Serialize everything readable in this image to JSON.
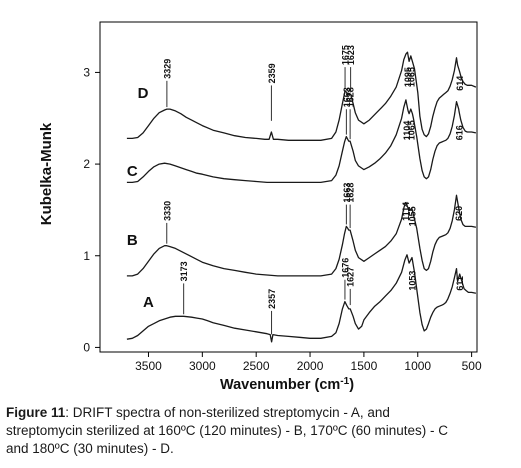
{
  "chart_data": {
    "type": "line",
    "xlabel": "Wavenumber (cm-1)",
    "xlabel_parts": {
      "main": "Wavenumber (cm",
      "superscript": "-1",
      "close": ")"
    },
    "ylabel": "Kubelka-Munk",
    "xlim": [
      3950,
      450
    ],
    "x_reversed": true,
    "ylim": [
      -0.05,
      3.55
    ],
    "x_ticks": [
      3500,
      3000,
      2500,
      2000,
      1500,
      1000,
      500
    ],
    "x_tick_labels": [
      "3500",
      "3000",
      "2500",
      "2000",
      "1500",
      "1000",
      "500"
    ],
    "y_ticks": [
      0,
      1,
      2,
      3
    ],
    "y_tick_labels": [
      "0",
      "1",
      "2",
      "3"
    ],
    "grid": false,
    "legend": "none",
    "series": [
      {
        "name": "A",
        "label_at": [
          3500,
          0.44
        ],
        "x": [
          3700,
          3650,
          3600,
          3550,
          3500,
          3450,
          3400,
          3350,
          3300,
          3250,
          3200,
          3173,
          3100,
          3050,
          3000,
          2950,
          2900,
          2800,
          2700,
          2600,
          2500,
          2400,
          2370,
          2357,
          2345,
          2300,
          2200,
          2100,
          2000,
          1900,
          1800,
          1760,
          1730,
          1700,
          1676,
          1660,
          1640,
          1627,
          1600,
          1580,
          1550,
          1520,
          1500,
          1450,
          1400,
          1350,
          1300,
          1250,
          1200,
          1150,
          1120,
          1100,
          1080,
          1053,
          1030,
          1000,
          980,
          960,
          940,
          920,
          900,
          880,
          860,
          840,
          820,
          800,
          780,
          760,
          740,
          720,
          700,
          680,
          660,
          640,
          630,
          611,
          590,
          570,
          550,
          530,
          500,
          460
        ],
        "y": [
          0.09,
          0.1,
          0.13,
          0.18,
          0.23,
          0.26,
          0.29,
          0.31,
          0.33,
          0.34,
          0.34,
          0.34,
          0.33,
          0.32,
          0.31,
          0.29,
          0.27,
          0.24,
          0.21,
          0.19,
          0.17,
          0.15,
          0.14,
          0.06,
          0.14,
          0.13,
          0.12,
          0.11,
          0.1,
          0.1,
          0.12,
          0.16,
          0.26,
          0.42,
          0.5,
          0.46,
          0.42,
          0.42,
          0.34,
          0.26,
          0.2,
          0.23,
          0.3,
          0.38,
          0.45,
          0.5,
          0.56,
          0.62,
          0.7,
          0.82,
          0.95,
          1.01,
          0.92,
          0.98,
          0.82,
          0.55,
          0.38,
          0.25,
          0.18,
          0.2,
          0.26,
          0.33,
          0.38,
          0.42,
          0.44,
          0.45,
          0.46,
          0.47,
          0.49,
          0.53,
          0.59,
          0.66,
          0.76,
          0.86,
          0.72,
          0.8,
          0.72,
          0.64,
          0.62,
          0.6,
          0.6,
          0.59
        ]
      },
      {
        "name": "B",
        "label_at": [
          3650,
          1.12
        ],
        "x": [
          3700,
          3650,
          3600,
          3550,
          3500,
          3450,
          3400,
          3350,
          3330,
          3300,
          3250,
          3200,
          3150,
          3100,
          3050,
          3000,
          2900,
          2800,
          2700,
          2600,
          2500,
          2400,
          2300,
          2200,
          2100,
          2000,
          1900,
          1800,
          1760,
          1730,
          1700,
          1680,
          1663,
          1650,
          1640,
          1628,
          1600,
          1580,
          1550,
          1500,
          1450,
          1400,
          1350,
          1300,
          1250,
          1200,
          1150,
          1130,
          1114,
          1100,
          1080,
          1055,
          1040,
          1010,
          980,
          960,
          940,
          920,
          900,
          880,
          860,
          840,
          820,
          800,
          780,
          760,
          740,
          720,
          700,
          680,
          660,
          640,
          620,
          600,
          580,
          560,
          540,
          520,
          500,
          460
        ],
        "y": [
          0.78,
          0.78,
          0.8,
          0.86,
          0.94,
          1.02,
          1.08,
          1.11,
          1.11,
          1.1,
          1.08,
          1.05,
          1.02,
          0.99,
          0.96,
          0.93,
          0.89,
          0.86,
          0.84,
          0.82,
          0.8,
          0.79,
          0.78,
          0.78,
          0.78,
          0.78,
          0.78,
          0.8,
          0.86,
          0.96,
          1.12,
          1.24,
          1.32,
          1.3,
          1.28,
          1.28,
          1.16,
          1.06,
          0.98,
          0.94,
          0.98,
          1.02,
          1.06,
          1.1,
          1.16,
          1.24,
          1.4,
          1.52,
          1.58,
          1.55,
          1.49,
          1.52,
          1.45,
          1.3,
          1.08,
          0.95,
          0.86,
          0.84,
          0.86,
          0.94,
          1.04,
          1.12,
          1.17,
          1.2,
          1.21,
          1.22,
          1.23,
          1.25,
          1.3,
          1.38,
          1.5,
          1.66,
          1.52,
          1.4,
          1.34,
          1.32,
          1.32,
          1.32,
          1.32,
          1.31
        ]
      },
      {
        "name": "C",
        "label_at": [
          3650,
          1.87
        ],
        "x": [
          3700,
          3650,
          3600,
          3550,
          3500,
          3450,
          3400,
          3350,
          3300,
          3250,
          3200,
          3150,
          3100,
          3050,
          3000,
          2900,
          2800,
          2700,
          2600,
          2500,
          2400,
          2300,
          2200,
          2100,
          2000,
          1900,
          1800,
          1760,
          1730,
          1700,
          1680,
          1663,
          1650,
          1640,
          1628,
          1600,
          1580,
          1550,
          1500,
          1450,
          1400,
          1350,
          1300,
          1250,
          1200,
          1150,
          1130,
          1110,
          1104,
          1090,
          1080,
          1065,
          1050,
          1040,
          1010,
          980,
          960,
          940,
          920,
          900,
          880,
          860,
          840,
          820,
          800,
          780,
          760,
          740,
          720,
          700,
          680,
          660,
          640,
          620,
          616,
          600,
          580,
          560,
          540,
          520,
          500,
          460
        ],
        "y": [
          1.8,
          1.8,
          1.81,
          1.86,
          1.92,
          1.97,
          2.0,
          2.01,
          2.0,
          1.98,
          1.96,
          1.94,
          1.92,
          1.9,
          1.89,
          1.86,
          1.84,
          1.83,
          1.82,
          1.81,
          1.8,
          1.8,
          1.8,
          1.8,
          1.8,
          1.8,
          1.82,
          1.88,
          1.98,
          2.14,
          2.24,
          2.3,
          2.27,
          2.25,
          2.25,
          2.14,
          2.04,
          1.98,
          1.94,
          1.97,
          2.01,
          2.06,
          2.12,
          2.2,
          2.32,
          2.5,
          2.62,
          2.7,
          2.66,
          2.58,
          2.55,
          2.6,
          2.55,
          2.5,
          2.3,
          2.06,
          1.93,
          1.86,
          1.84,
          1.86,
          1.94,
          2.05,
          2.14,
          2.2,
          2.23,
          2.24,
          2.25,
          2.26,
          2.28,
          2.33,
          2.41,
          2.53,
          2.68,
          2.6,
          2.57,
          2.48,
          2.4,
          2.36,
          2.35,
          2.35,
          2.35,
          2.34
        ]
      },
      {
        "name": "D",
        "label_at": [
          3550,
          2.72
        ],
        "x": [
          3700,
          3650,
          3600,
          3550,
          3500,
          3450,
          3400,
          3350,
          3329,
          3300,
          3250,
          3200,
          3150,
          3100,
          3050,
          3000,
          2900,
          2800,
          2700,
          2600,
          2500,
          2420,
          2380,
          2359,
          2340,
          2300,
          2200,
          2100,
          2000,
          1900,
          1800,
          1760,
          1730,
          1700,
          1675,
          1660,
          1650,
          1623,
          1600,
          1580,
          1550,
          1500,
          1450,
          1400,
          1350,
          1300,
          1250,
          1200,
          1150,
          1130,
          1110,
          1095,
          1080,
          1065,
          1050,
          1030,
          1000,
          980,
          960,
          940,
          920,
          900,
          880,
          860,
          840,
          820,
          800,
          780,
          760,
          740,
          720,
          700,
          680,
          660,
          640,
          630,
          614,
          600,
          580,
          560,
          540,
          520,
          500,
          460
        ],
        "y": [
          2.28,
          2.28,
          2.29,
          2.34,
          2.42,
          2.5,
          2.56,
          2.59,
          2.6,
          2.6,
          2.58,
          2.55,
          2.51,
          2.48,
          2.45,
          2.42,
          2.37,
          2.34,
          2.31,
          2.29,
          2.28,
          2.27,
          2.27,
          2.35,
          2.27,
          2.27,
          2.26,
          2.26,
          2.26,
          2.26,
          2.28,
          2.35,
          2.48,
          2.66,
          2.8,
          2.78,
          2.76,
          2.76,
          2.66,
          2.56,
          2.48,
          2.44,
          2.48,
          2.54,
          2.6,
          2.66,
          2.74,
          2.84,
          3.02,
          3.14,
          3.2,
          3.22,
          3.12,
          3.18,
          3.12,
          3.04,
          2.78,
          2.52,
          2.38,
          2.32,
          2.3,
          2.33,
          2.41,
          2.52,
          2.61,
          2.68,
          2.72,
          2.74,
          2.76,
          2.78,
          2.8,
          2.85,
          2.92,
          3.02,
          3.16,
          3.08,
          3.02,
          2.96,
          2.9,
          2.87,
          2.86,
          2.86,
          2.86,
          2.84
        ]
      }
    ],
    "annotations": [
      {
        "text": "3173",
        "x": 3173,
        "y": 0.34,
        "top": 0.72,
        "rotate": true
      },
      {
        "text": "2357",
        "x": 2357,
        "y": 0.12,
        "top": 0.42,
        "rotate": true
      },
      {
        "text": "1676",
        "x": 1676,
        "y": 0.5,
        "top": 0.76,
        "rotate": true
      },
      {
        "text": "1627",
        "x": 1627,
        "y": 0.44,
        "top": 0.66,
        "rotate": true
      },
      {
        "text": "1053",
        "x": 1053,
        "y": 1.0,
        "top": 0.62,
        "rotate": true,
        "inside": true
      },
      {
        "text": "611",
        "x": 611,
        "y": 0.82,
        "top": 0.62,
        "rotate": true,
        "inside": true
      },
      {
        "text": "3330",
        "x": 3330,
        "y": 1.11,
        "top": 1.38,
        "rotate": true
      },
      {
        "text": "1663",
        "x": 1663,
        "y": 1.32,
        "top": 1.58,
        "rotate": true
      },
      {
        "text": "1628",
        "x": 1628,
        "y": 1.28,
        "top": 1.58,
        "rotate": true
      },
      {
        "text": "1114",
        "x": 1114,
        "y": 1.58,
        "top": 1.38,
        "rotate": true,
        "inside": true
      },
      {
        "text": "1055",
        "x": 1055,
        "y": 1.52,
        "top": 1.32,
        "rotate": true,
        "inside": true
      },
      {
        "text": "620",
        "x": 620,
        "y": 1.66,
        "top": 1.38,
        "rotate": true,
        "inside": true
      },
      {
        "text": "1663",
        "x": 1663,
        "y": 2.3,
        "top": 2.62,
        "rotate": true
      },
      {
        "text": "1628",
        "x": 1628,
        "y": 2.25,
        "top": 2.62,
        "rotate": true
      },
      {
        "text": "1104",
        "x": 1104,
        "y": 2.66,
        "top": 2.26,
        "rotate": true,
        "inside": true
      },
      {
        "text": "1065",
        "x": 1065,
        "y": 2.6,
        "top": 2.26,
        "rotate": true,
        "inside": true
      },
      {
        "text": "616",
        "x": 616,
        "y": 2.57,
        "top": 2.26,
        "rotate": true,
        "inside": true
      },
      {
        "text": "3329",
        "x": 3329,
        "y": 2.6,
        "top": 2.93,
        "rotate": true
      },
      {
        "text": "2359",
        "x": 2359,
        "y": 2.45,
        "top": 2.88,
        "rotate": true
      },
      {
        "text": "1675",
        "x": 1675,
        "y": 2.8,
        "top": 3.08,
        "rotate": true
      },
      {
        "text": "1623",
        "x": 1623,
        "y": 2.76,
        "top": 3.08,
        "rotate": true
      },
      {
        "text": "1095",
        "x": 1095,
        "y": 3.22,
        "top": 2.84,
        "rotate": true,
        "inside": true
      },
      {
        "text": "1065",
        "x": 1065,
        "y": 3.18,
        "top": 2.84,
        "rotate": true,
        "inside": true
      },
      {
        "text": "614",
        "x": 614,
        "y": 3.02,
        "top": 2.8,
        "rotate": true,
        "inside": true
      }
    ]
  },
  "caption": {
    "figure_label": "Figure 11",
    "line1_rest": ": DRIFT spectra of non-sterilized streptomycin - A, and",
    "line2": "streptomycin sterilized at 160ºC (120 minutes) - B, 170ºC (60 minutes) - C",
    "line3": "and 180ºC (30 minutes) - D."
  },
  "colors": {
    "line": "#1a1a1a",
    "axis": "#000000",
    "text": "#111111"
  }
}
